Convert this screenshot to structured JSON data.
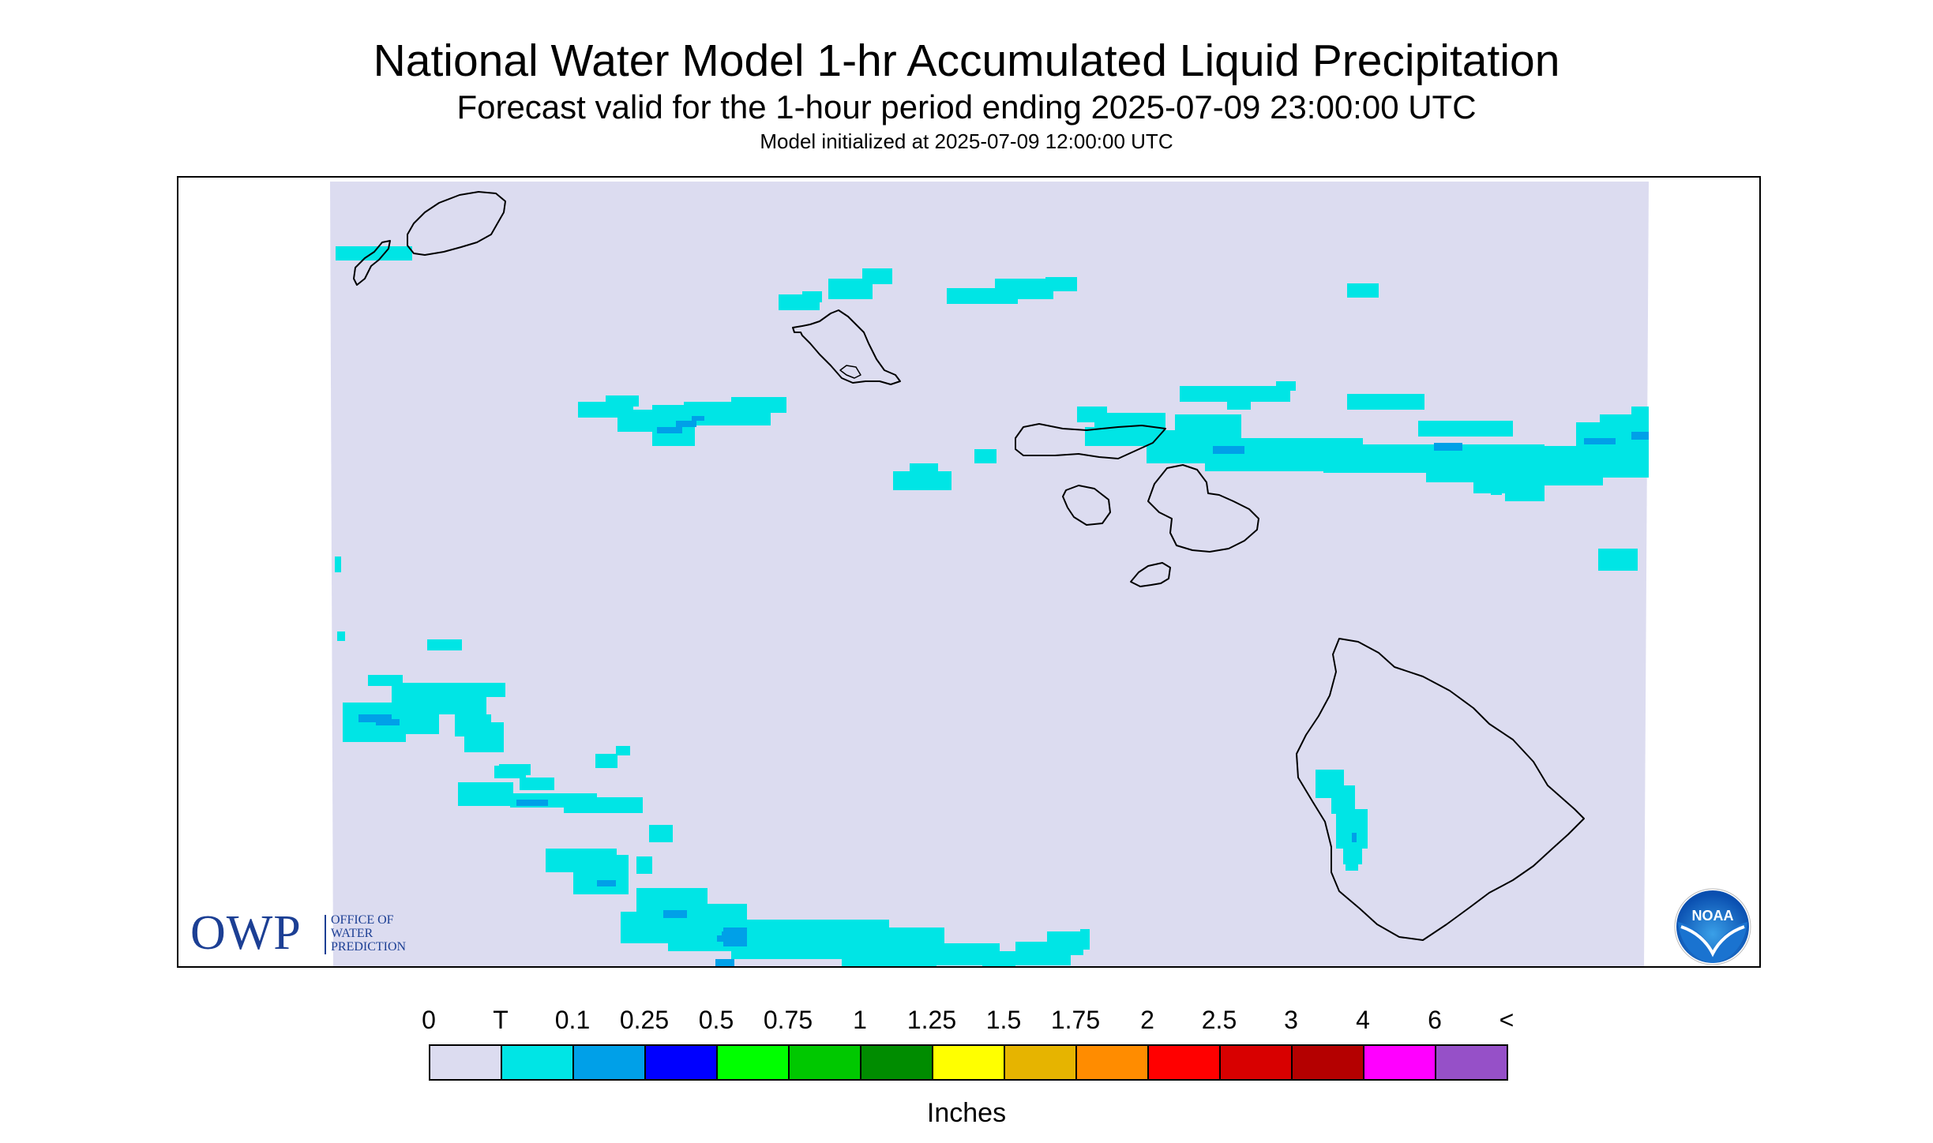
{
  "header": {
    "title": "National Water Model 1-hr Accumulated Liquid Precipitation",
    "subtitle": "Forecast valid for the 1-hour period ending 2025-07-09 23:00:00 UTC",
    "init": "Model initialized at 2025-07-09 12:00:00 UTC"
  },
  "colors": {
    "background_field": "#dcdcf0",
    "trace": "#00e5e5",
    "light_blue": "#00a0e8",
    "coast": "#000000"
  },
  "logos": {
    "owp": {
      "letters": "OWP",
      "line1": "OFFICE OF",
      "line2": "WATER",
      "line3": "PREDICTION"
    },
    "noaa": {
      "text": "NOAA"
    }
  },
  "legend": {
    "ticks": [
      "0",
      "T",
      "0.1",
      "0.25",
      "0.5",
      "0.75",
      "1",
      "1.25",
      "1.5",
      "1.75",
      "2",
      "2.5",
      "3",
      "4",
      "6",
      "<"
    ],
    "colors": [
      "#dcdcf0",
      "#00e5e5",
      "#00a0e8",
      "#0000ff",
      "#00ff00",
      "#00c800",
      "#008c00",
      "#ffff00",
      "#e6b400",
      "#ff8c00",
      "#ff0000",
      "#d80000",
      "#b40000",
      "#ff00ff",
      "#9650c8"
    ],
    "unit": "Inches"
  }
}
